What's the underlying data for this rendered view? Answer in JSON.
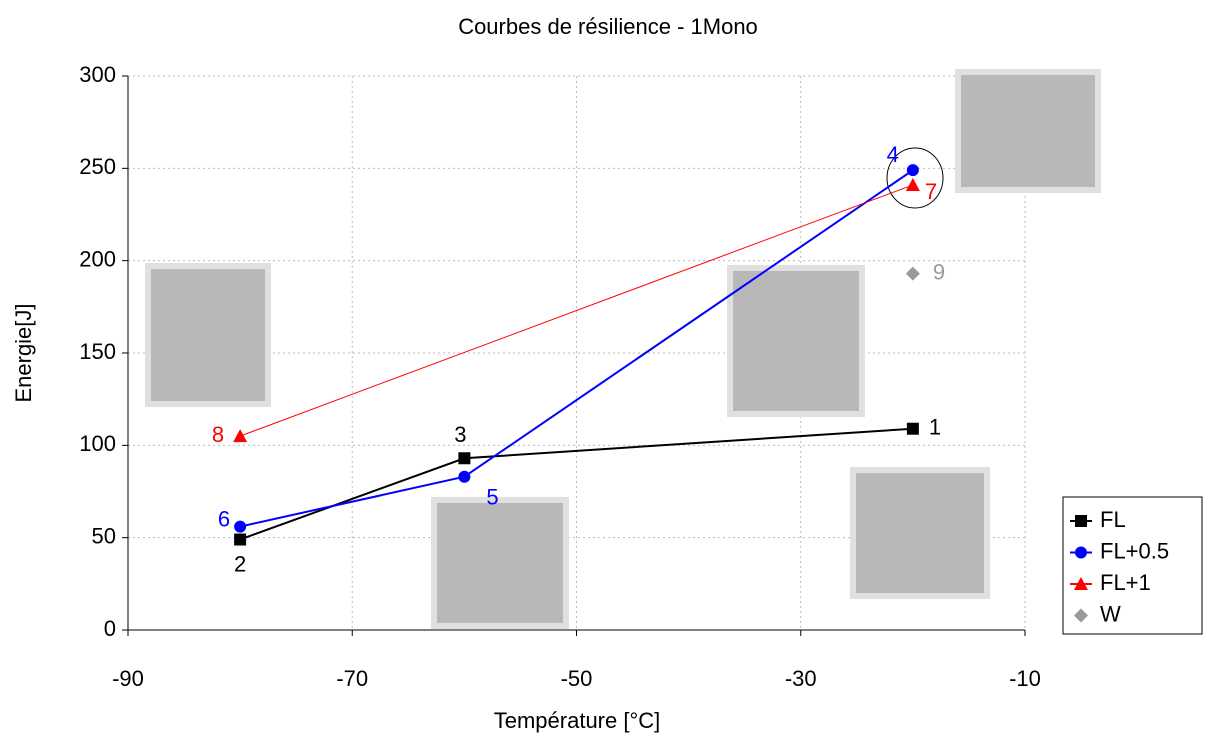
{
  "chart_data": {
    "type": "line",
    "title": "Courbes de résilience - 1Mono",
    "xlabel": "Température [°C]",
    "ylabel": "Energie[J]",
    "xlim": [
      -90,
      -10
    ],
    "xticks": [
      -90,
      -70,
      -50,
      -30,
      -10
    ],
    "ylim": [
      0,
      300
    ],
    "yticks": [
      0,
      50,
      100,
      150,
      200,
      250,
      300
    ],
    "grid": true,
    "legend": "right",
    "series": [
      {
        "name": "FL",
        "color": "#000000",
        "marker": "square",
        "line": true,
        "x": [
          -80,
          -60,
          -20
        ],
        "values": [
          49,
          93,
          109
        ],
        "point_labels": [
          "2",
          "3",
          "1"
        ]
      },
      {
        "name": "FL+0.5",
        "color": "#0000ff",
        "marker": "circle",
        "line": true,
        "x": [
          -80,
          -60,
          -20
        ],
        "values": [
          56,
          83,
          249
        ],
        "point_labels": [
          "6",
          "5",
          "4"
        ]
      },
      {
        "name": "FL+1",
        "color": "#ff0000",
        "marker": "triangle",
        "line": true,
        "x": [
          -80,
          -20
        ],
        "values": [
          105,
          241
        ],
        "point_labels": [
          "8",
          "7"
        ]
      },
      {
        "name": "W",
        "color": "#999999",
        "marker": "diamond",
        "line": false,
        "x": [
          -20
        ],
        "values": [
          193
        ],
        "point_labels": [
          "9"
        ]
      }
    ]
  }
}
